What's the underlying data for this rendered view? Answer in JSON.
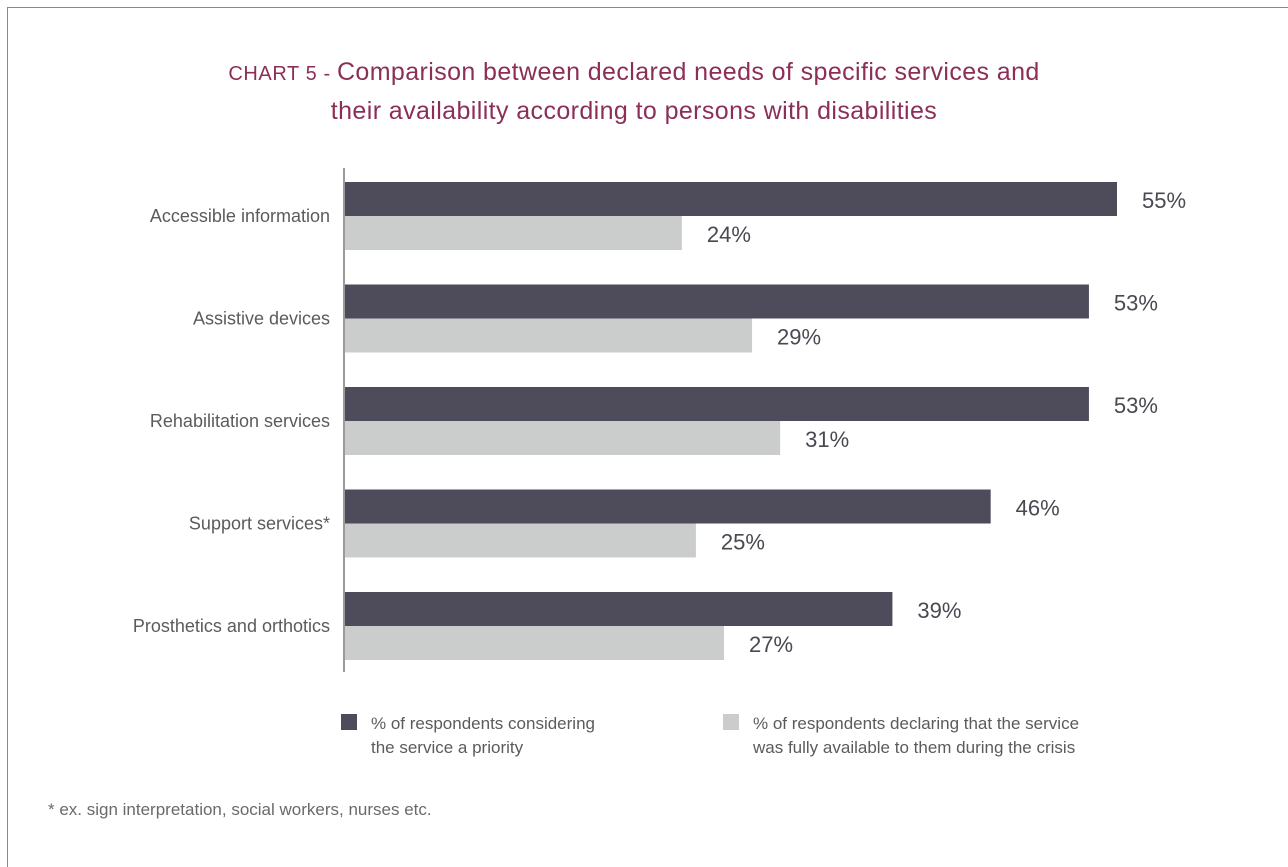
{
  "title": {
    "prefix": "CHART 5 - ",
    "line1": "Comparison between declared needs of specific services and",
    "line2": "their availability according to persons with disabilities"
  },
  "footnote": "* ex. sign interpretation, social workers, nurses etc.",
  "colors": {
    "title": "#8b2f57",
    "series_priority": "#4e4b5a",
    "series_available": "#cbcdcd",
    "text": "#5b5b5e"
  },
  "chart_data": {
    "type": "bar",
    "orientation": "horizontal",
    "categories": [
      "Accessible information",
      "Assistive devices",
      "Rehabilitation services",
      "Support services*",
      "Prosthetics and orthotics"
    ],
    "series": [
      {
        "name": "% of respondents considering the service a priority",
        "legend_lines": [
          "% of respondents considering",
          "the service a priority"
        ],
        "values": [
          55,
          53,
          53,
          46,
          39
        ],
        "labels": [
          "55%",
          "53%",
          "53%",
          "46%",
          "39%"
        ],
        "color": "#4e4b5a"
      },
      {
        "name": "% of respondents declaring that the service was fully available to them during the crisis",
        "legend_lines": [
          "% of respondents declaring that the service",
          "was fully available to them during the crisis"
        ],
        "values": [
          24,
          29,
          31,
          25,
          27
        ],
        "labels": [
          "24%",
          "29%",
          "31%",
          "25%",
          "27%"
        ],
        "color": "#cbcdcd"
      }
    ],
    "xlim": [
      0,
      55
    ],
    "grid": false,
    "legend_position": "bottom"
  }
}
